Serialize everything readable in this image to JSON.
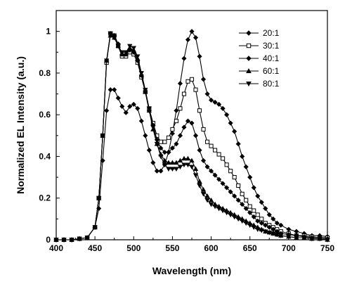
{
  "chart_data": {
    "type": "line",
    "xlabel": "Wavelength (nm)",
    "ylabel": "Normalized EL Intensity (a.u.)",
    "xlim": [
      400,
      750
    ],
    "ylim": [
      0,
      1.1
    ],
    "xticks": [
      400,
      450,
      500,
      550,
      600,
      650,
      700,
      750
    ],
    "yticks": [
      0,
      0.2,
      0.4,
      0.6,
      0.8,
      1
    ],
    "xtick_labels": [
      "400",
      "450",
      "500",
      "550",
      "600",
      "650",
      "700",
      "750"
    ],
    "ytick_labels": [
      "0",
      "0.2",
      "0.4",
      "0.6",
      "0.8",
      "1"
    ],
    "legend_position": "top-right",
    "grid": false,
    "x": [
      400,
      410,
      420,
      430,
      440,
      450,
      455,
      460,
      465,
      470,
      475,
      480,
      485,
      490,
      495,
      500,
      505,
      510,
      515,
      520,
      525,
      530,
      535,
      540,
      545,
      550,
      555,
      560,
      565,
      570,
      575,
      580,
      585,
      590,
      595,
      600,
      605,
      610,
      615,
      620,
      625,
      630,
      635,
      640,
      645,
      650,
      655,
      660,
      665,
      670,
      675,
      680,
      685,
      690,
      700,
      710,
      720,
      730,
      740,
      750
    ],
    "series": [
      {
        "name": "20:1",
        "marker": "diamond",
        "values": [
          0.0,
          0.0,
          0.0,
          0.005,
          0.01,
          0.06,
          0.15,
          0.38,
          0.62,
          0.72,
          0.72,
          0.68,
          0.64,
          0.61,
          0.64,
          0.65,
          0.63,
          0.57,
          0.5,
          0.43,
          0.37,
          0.33,
          0.33,
          0.36,
          0.42,
          0.51,
          0.62,
          0.75,
          0.87,
          0.96,
          1.0,
          0.97,
          0.88,
          0.77,
          0.7,
          0.67,
          0.66,
          0.65,
          0.63,
          0.6,
          0.56,
          0.52,
          0.46,
          0.4,
          0.35,
          0.3,
          0.25,
          0.21,
          0.18,
          0.15,
          0.12,
          0.1,
          0.08,
          0.07,
          0.05,
          0.04,
          0.03,
          0.02,
          0.02,
          0.015
        ]
      },
      {
        "name": "30:1",
        "marker": "square",
        "values": [
          0.0,
          0.0,
          0.0,
          0.005,
          0.01,
          0.06,
          0.2,
          0.5,
          0.85,
          0.99,
          0.98,
          0.93,
          0.88,
          0.88,
          0.9,
          0.89,
          0.85,
          0.78,
          0.71,
          0.63,
          0.56,
          0.5,
          0.47,
          0.47,
          0.49,
          0.53,
          0.57,
          0.63,
          0.7,
          0.76,
          0.77,
          0.72,
          0.62,
          0.53,
          0.47,
          0.45,
          0.43,
          0.41,
          0.39,
          0.36,
          0.33,
          0.3,
          0.26,
          0.22,
          0.19,
          0.16,
          0.14,
          0.12,
          0.1,
          0.08,
          0.07,
          0.06,
          0.05,
          0.04,
          0.03,
          0.02,
          0.02,
          0.015,
          0.01,
          0.01
        ]
      },
      {
        "name": "40:1",
        "marker": "diamond",
        "values": [
          0.0,
          0.0,
          0.0,
          0.005,
          0.01,
          0.06,
          0.2,
          0.5,
          0.86,
          0.99,
          0.98,
          0.94,
          0.89,
          0.89,
          0.91,
          0.9,
          0.86,
          0.79,
          0.71,
          0.62,
          0.55,
          0.48,
          0.44,
          0.42,
          0.42,
          0.44,
          0.46,
          0.5,
          0.54,
          0.57,
          0.56,
          0.5,
          0.43,
          0.38,
          0.35,
          0.33,
          0.31,
          0.29,
          0.27,
          0.25,
          0.23,
          0.21,
          0.19,
          0.17,
          0.15,
          0.13,
          0.11,
          0.09,
          0.08,
          0.07,
          0.06,
          0.05,
          0.04,
          0.03,
          0.025,
          0.02,
          0.015,
          0.01,
          0.01,
          0.005
        ]
      },
      {
        "name": "60:1",
        "marker": "triangle-up",
        "values": [
          0.0,
          0.0,
          0.0,
          0.005,
          0.01,
          0.06,
          0.2,
          0.5,
          0.86,
          0.98,
          0.97,
          0.93,
          0.89,
          0.89,
          0.92,
          0.91,
          0.87,
          0.79,
          0.71,
          0.62,
          0.53,
          0.46,
          0.41,
          0.38,
          0.37,
          0.37,
          0.37,
          0.38,
          0.39,
          0.39,
          0.38,
          0.34,
          0.28,
          0.24,
          0.21,
          0.19,
          0.17,
          0.16,
          0.15,
          0.14,
          0.13,
          0.12,
          0.11,
          0.1,
          0.09,
          0.08,
          0.07,
          0.06,
          0.05,
          0.04,
          0.035,
          0.03,
          0.025,
          0.02,
          0.015,
          0.01,
          0.01,
          0.005,
          0.005,
          0.0
        ]
      },
      {
        "name": "80:1",
        "marker": "triangle-down",
        "values": [
          0.0,
          0.0,
          0.0,
          0.005,
          0.01,
          0.06,
          0.2,
          0.5,
          0.86,
          0.99,
          0.97,
          0.93,
          0.9,
          0.9,
          0.93,
          0.92,
          0.88,
          0.8,
          0.72,
          0.63,
          0.54,
          0.46,
          0.4,
          0.36,
          0.34,
          0.34,
          0.34,
          0.35,
          0.36,
          0.36,
          0.35,
          0.31,
          0.26,
          0.22,
          0.19,
          0.17,
          0.16,
          0.15,
          0.14,
          0.13,
          0.12,
          0.11,
          0.1,
          0.09,
          0.08,
          0.07,
          0.06,
          0.05,
          0.045,
          0.04,
          0.035,
          0.03,
          0.025,
          0.02,
          0.015,
          0.01,
          0.01,
          0.005,
          0.005,
          0.0
        ]
      }
    ]
  }
}
